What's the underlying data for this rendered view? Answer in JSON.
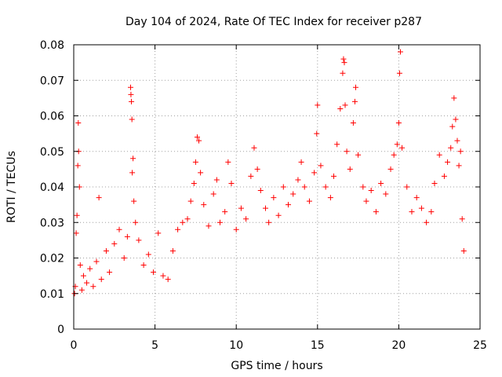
{
  "chart_data": {
    "type": "scatter",
    "title": "Day 104 of 2024, Rate Of TEC Index for receiver p287",
    "xlabel": "GPS time / hours",
    "ylabel": "ROTI / TECUs",
    "xlim": [
      0,
      25
    ],
    "ylim": [
      0,
      0.08
    ],
    "xticks": [
      "0",
      "5",
      "10",
      "15",
      "20",
      "25"
    ],
    "yticks": [
      "0",
      "0.01",
      "0.02",
      "0.03",
      "0.04",
      "0.05",
      "0.06",
      "0.07",
      "0.08"
    ],
    "grid": true,
    "marker": "+",
    "color": "#ff0000",
    "series": [
      {
        "name": "",
        "points": [
          [
            0.05,
            0.01
          ],
          [
            0.1,
            0.012
          ],
          [
            0.15,
            0.027
          ],
          [
            0.2,
            0.032
          ],
          [
            0.25,
            0.046
          ],
          [
            0.28,
            0.058
          ],
          [
            0.3,
            0.05
          ],
          [
            0.35,
            0.04
          ],
          [
            0.4,
            0.018
          ],
          [
            0.5,
            0.011
          ],
          [
            0.6,
            0.015
          ],
          [
            0.8,
            0.013
          ],
          [
            1.0,
            0.017
          ],
          [
            1.2,
            0.012
          ],
          [
            1.4,
            0.019
          ],
          [
            1.55,
            0.037
          ],
          [
            1.7,
            0.014
          ],
          [
            2.0,
            0.022
          ],
          [
            2.2,
            0.016
          ],
          [
            2.5,
            0.024
          ],
          [
            2.8,
            0.028
          ],
          [
            3.1,
            0.02
          ],
          [
            3.3,
            0.026
          ],
          [
            3.5,
            0.068
          ],
          [
            3.52,
            0.066
          ],
          [
            3.55,
            0.064
          ],
          [
            3.58,
            0.059
          ],
          [
            3.6,
            0.044
          ],
          [
            3.65,
            0.048
          ],
          [
            3.7,
            0.036
          ],
          [
            3.8,
            0.03
          ],
          [
            4.0,
            0.025
          ],
          [
            4.3,
            0.018
          ],
          [
            4.6,
            0.021
          ],
          [
            4.9,
            0.016
          ],
          [
            5.2,
            0.027
          ],
          [
            5.5,
            0.015
          ],
          [
            5.8,
            0.014
          ],
          [
            6.1,
            0.022
          ],
          [
            6.4,
            0.028
          ],
          [
            6.7,
            0.03
          ],
          [
            7.0,
            0.031
          ],
          [
            7.2,
            0.036
          ],
          [
            7.4,
            0.041
          ],
          [
            7.5,
            0.047
          ],
          [
            7.6,
            0.054
          ],
          [
            7.7,
            0.053
          ],
          [
            7.8,
            0.044
          ],
          [
            8.0,
            0.035
          ],
          [
            8.3,
            0.029
          ],
          [
            8.6,
            0.038
          ],
          [
            8.8,
            0.042
          ],
          [
            9.0,
            0.03
          ],
          [
            9.3,
            0.033
          ],
          [
            9.5,
            0.047
          ],
          [
            9.7,
            0.041
          ],
          [
            10.0,
            0.028
          ],
          [
            10.3,
            0.034
          ],
          [
            10.6,
            0.031
          ],
          [
            10.9,
            0.043
          ],
          [
            11.1,
            0.051
          ],
          [
            11.3,
            0.045
          ],
          [
            11.5,
            0.039
          ],
          [
            11.8,
            0.034
          ],
          [
            12.0,
            0.03
          ],
          [
            12.3,
            0.037
          ],
          [
            12.6,
            0.032
          ],
          [
            12.9,
            0.04
          ],
          [
            13.2,
            0.035
          ],
          [
            13.5,
            0.038
          ],
          [
            13.8,
            0.042
          ],
          [
            14.0,
            0.047
          ],
          [
            14.2,
            0.04
          ],
          [
            14.5,
            0.036
          ],
          [
            14.8,
            0.044
          ],
          [
            14.95,
            0.055
          ],
          [
            15.0,
            0.063
          ],
          [
            15.2,
            0.046
          ],
          [
            15.5,
            0.04
          ],
          [
            15.8,
            0.037
          ],
          [
            16.0,
            0.043
          ],
          [
            16.2,
            0.052
          ],
          [
            16.4,
            0.062
          ],
          [
            16.55,
            0.072
          ],
          [
            16.6,
            0.076
          ],
          [
            16.65,
            0.075
          ],
          [
            16.7,
            0.063
          ],
          [
            16.8,
            0.05
          ],
          [
            17.0,
            0.045
          ],
          [
            17.2,
            0.058
          ],
          [
            17.3,
            0.064
          ],
          [
            17.35,
            0.068
          ],
          [
            17.5,
            0.049
          ],
          [
            17.8,
            0.04
          ],
          [
            18.0,
            0.036
          ],
          [
            18.3,
            0.039
          ],
          [
            18.6,
            0.033
          ],
          [
            18.9,
            0.041
          ],
          [
            19.2,
            0.038
          ],
          [
            19.5,
            0.045
          ],
          [
            19.7,
            0.049
          ],
          [
            19.9,
            0.052
          ],
          [
            20.0,
            0.058
          ],
          [
            20.05,
            0.072
          ],
          [
            20.1,
            0.078
          ],
          [
            20.2,
            0.051
          ],
          [
            20.5,
            0.04
          ],
          [
            20.8,
            0.033
          ],
          [
            21.1,
            0.037
          ],
          [
            21.4,
            0.034
          ],
          [
            21.7,
            0.03
          ],
          [
            22.0,
            0.033
          ],
          [
            22.2,
            0.041
          ],
          [
            22.5,
            0.049
          ],
          [
            22.8,
            0.043
          ],
          [
            23.0,
            0.047
          ],
          [
            23.2,
            0.051
          ],
          [
            23.3,
            0.057
          ],
          [
            23.4,
            0.065
          ],
          [
            23.5,
            0.059
          ],
          [
            23.6,
            0.053
          ],
          [
            23.7,
            0.046
          ],
          [
            23.8,
            0.05
          ],
          [
            23.9,
            0.031
          ],
          [
            24.0,
            0.022
          ]
        ]
      }
    ]
  }
}
